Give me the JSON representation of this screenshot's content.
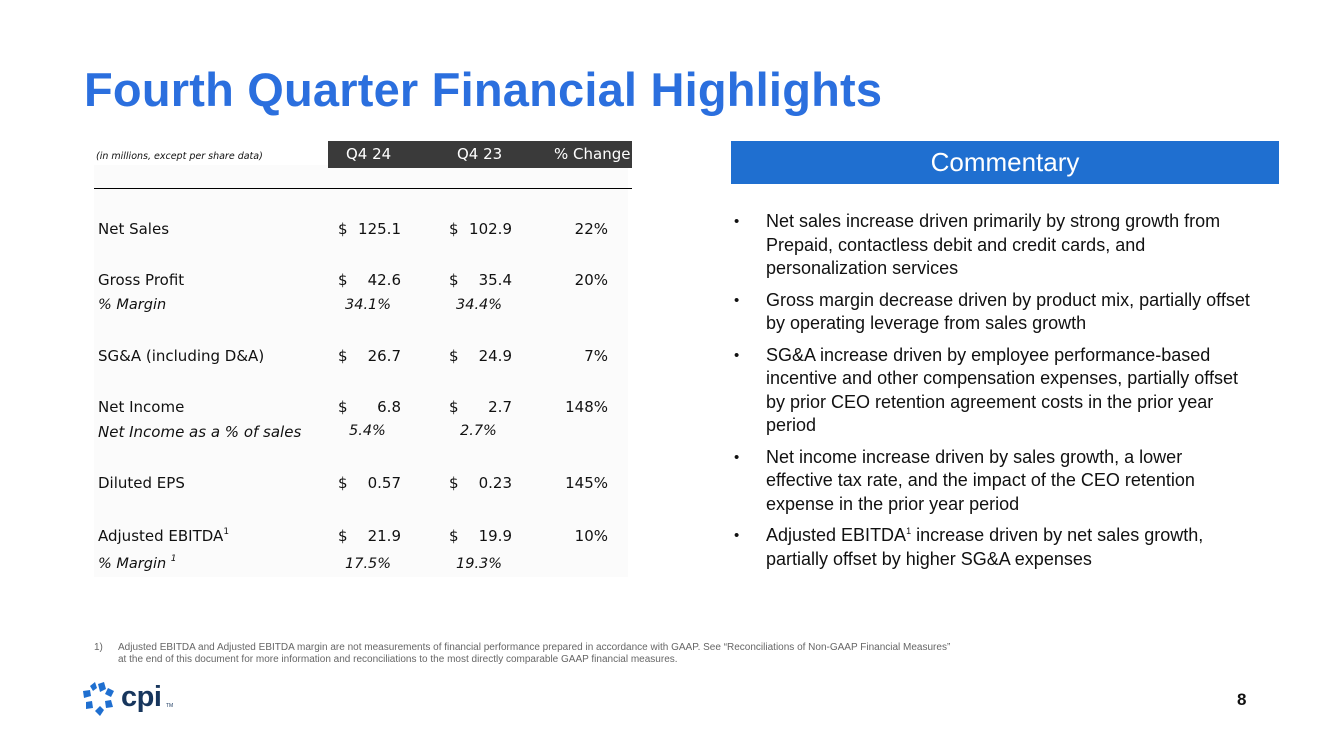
{
  "title": "Fourth Quarter Financial Highlights",
  "table": {
    "note": "(in millions, except per share data)",
    "headers": [
      "Q4 24",
      "Q4 23",
      "% Change"
    ],
    "rows": [
      {
        "label": "Net Sales",
        "q424": "125.1",
        "q423": "102.9",
        "change": "22%"
      },
      {
        "label": "Gross Profit",
        "q424": "42.6",
        "q423": "35.4",
        "change": "20%",
        "sub_label": "% Margin",
        "sub_q424": "34.1%",
        "sub_q423": "34.4%"
      },
      {
        "label": "SG&A (including D&A)",
        "q424": "26.7",
        "q423": "24.9",
        "change": "7%"
      },
      {
        "label": "Net Income",
        "q424": "6.8",
        "q423": "2.7",
        "change": "148%",
        "sub_label": "Net Income as a % of sales",
        "sub_q424": "5.4%",
        "sub_q423": "2.7%"
      },
      {
        "label": "Diluted EPS",
        "q424": "0.57",
        "q423": "0.23",
        "change": "145%"
      },
      {
        "label": "Adjusted EBITDA",
        "label_sup": "1",
        "q424": "21.9",
        "q423": "19.9",
        "change": "10%",
        "sub_label": "% Margin ",
        "sub_label_sup": "1",
        "sub_q424": "17.5%",
        "sub_q423": "19.3%"
      }
    ],
    "currency_symbol": "$"
  },
  "commentary": {
    "heading": "Commentary",
    "bullet_char": "•",
    "bullets": [
      {
        "text": "Net sales increase driven primarily by strong growth from Prepaid, contactless debit and credit cards, and personalization services"
      },
      {
        "text": "Gross margin decrease driven by product mix, partially offset by operating leverage from sales growth"
      },
      {
        "text": "SG&A increase driven by employee performance-based incentive and other compensation expenses, partially offset by prior CEO retention agreement costs in the prior year period"
      },
      {
        "text": "Net income increase driven by sales growth, a lower effective tax rate, and the impact of the CEO retention expense in the prior year period"
      },
      {
        "text_a": "Adjusted EBITDA",
        "sup": "1",
        "text_b": " increase driven by net sales growth, partially offset by higher SG&A expenses"
      }
    ]
  },
  "footnote": {
    "number": "1)",
    "text": "Adjusted EBITDA and Adjusted EBITDA margin are not measurements of financial performance prepared in accordance with GAAP. See “Reconciliations of Non-GAAP Financial Measures” at the end of this document for more information and reconciliations to the most directly comparable GAAP financial measures."
  },
  "logo": {
    "text": "cpi",
    "tm": "TM"
  },
  "page_number": "8",
  "colors": {
    "title": "#2b6fde",
    "commentary_bar": "#1f6fd0",
    "header_bar": "#3a3a3a",
    "logo_mark": "#1f6fd0",
    "logo_text": "#17365d"
  }
}
